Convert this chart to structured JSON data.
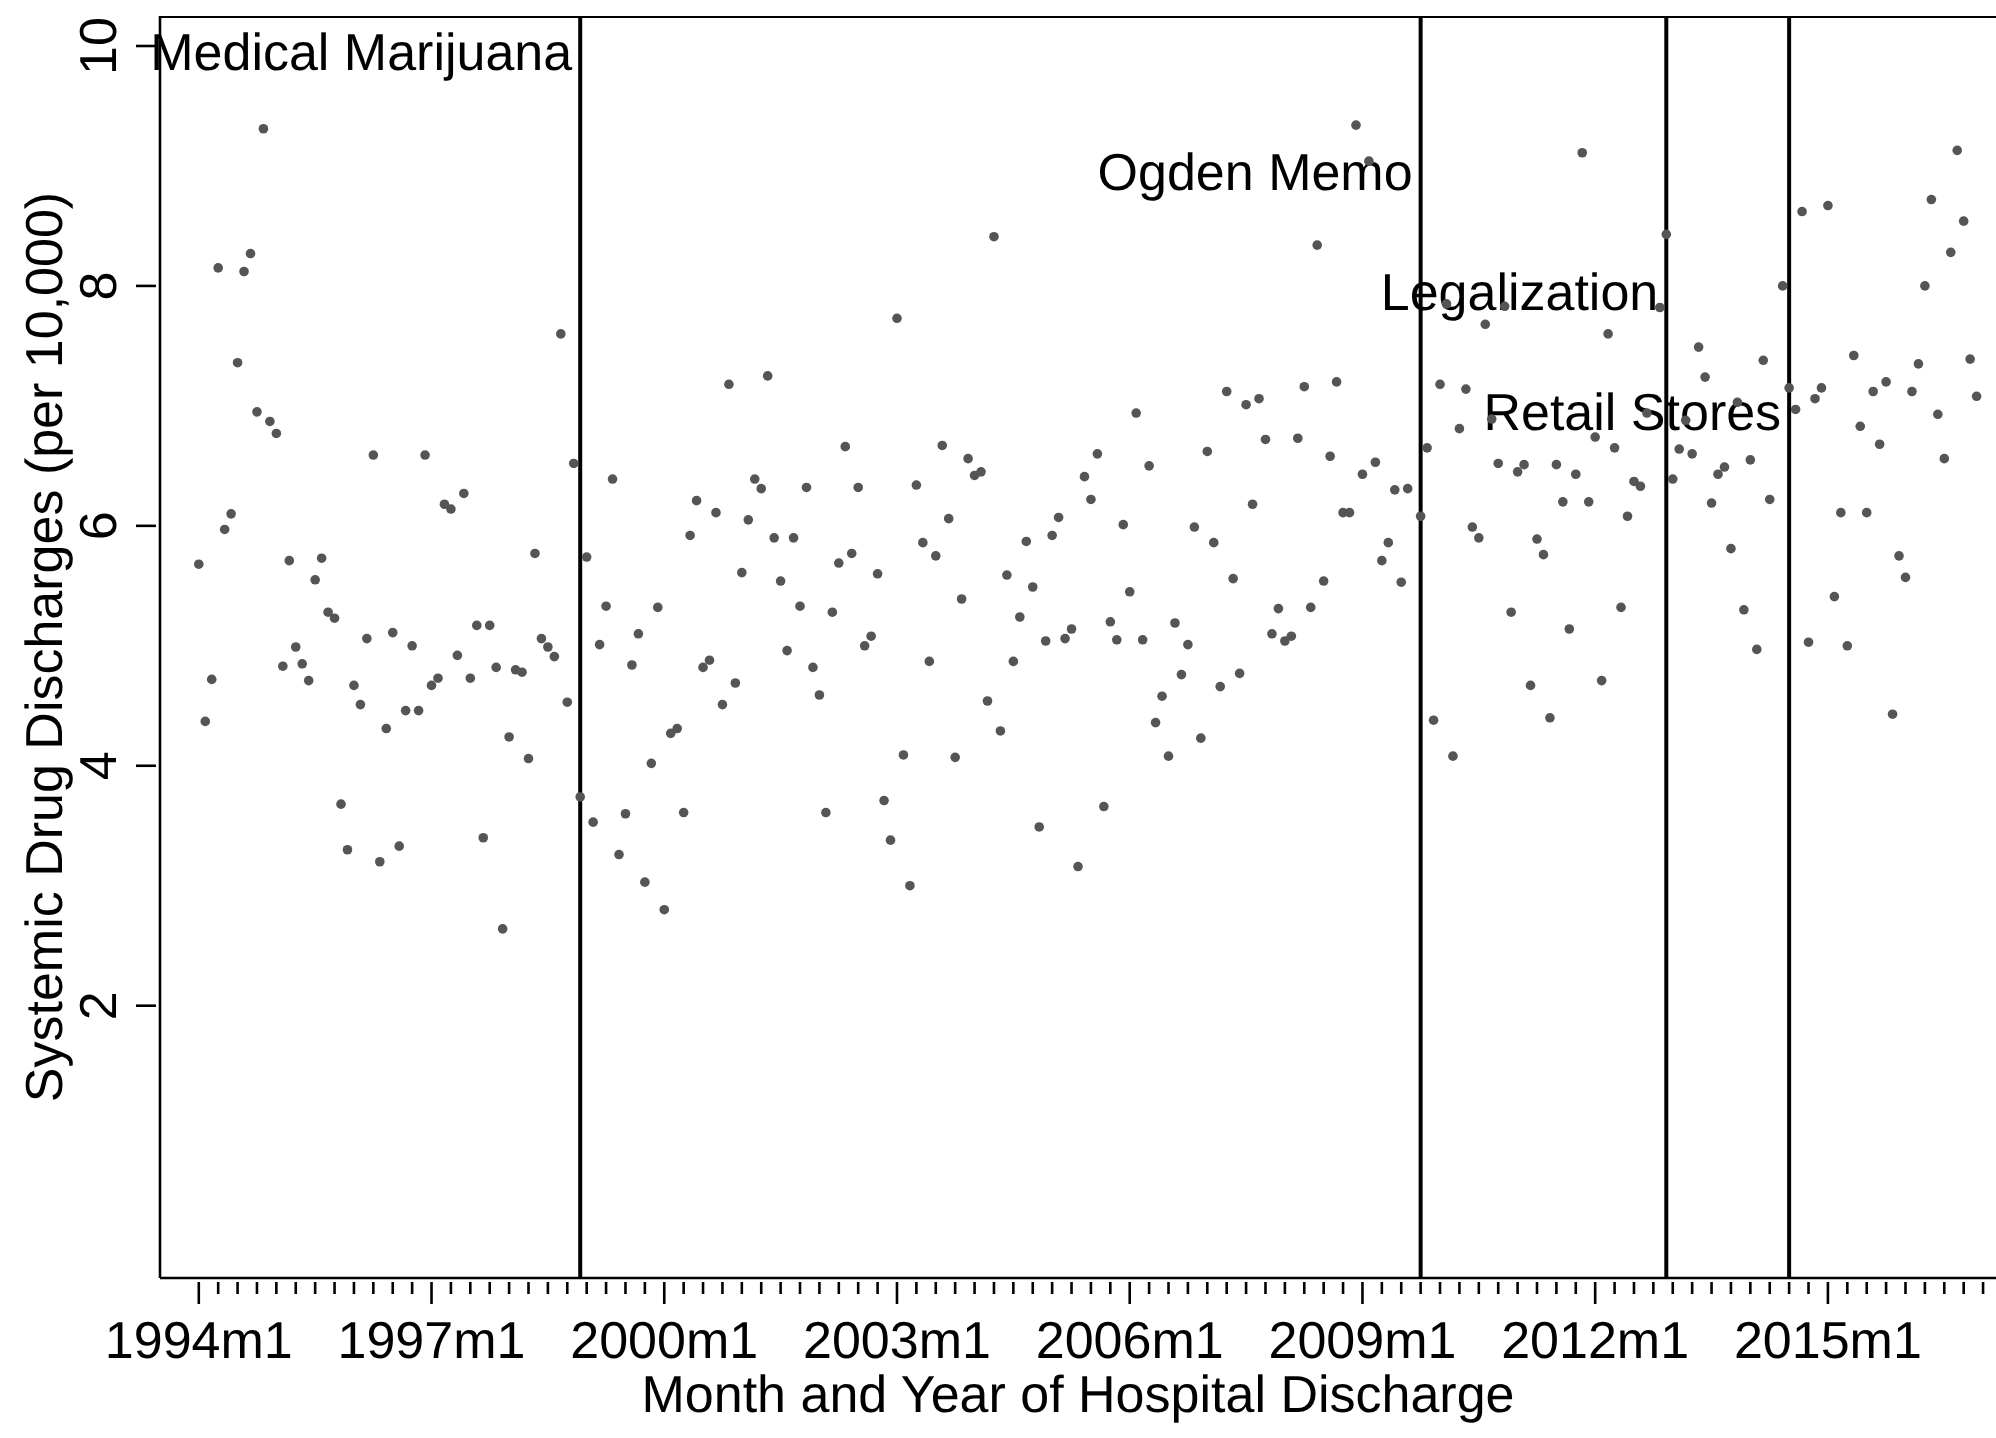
{
  "chart_data": {
    "type": "scatter",
    "xlabel": "Month and Year of Hospital Discharge",
    "ylabel": "Systemic Drug Discharges (per 10,000)",
    "marker": "circle",
    "color": "#555555",
    "xlim": [
      "1993-07",
      "2017-03"
    ],
    "ylim": [
      -0.27,
      10.25
    ],
    "yticks": [
      2,
      4,
      6,
      8,
      10
    ],
    "xticks": [
      {
        "value": "1994-01",
        "label": "1994m1"
      },
      {
        "value": "1994-04",
        "label": null
      },
      {
        "value": "1994-07",
        "label": null
      },
      {
        "value": "1994-10",
        "label": null
      },
      {
        "value": "1995-01",
        "label": null
      },
      {
        "value": "1995-04",
        "label": null
      },
      {
        "value": "1995-07",
        "label": null
      },
      {
        "value": "1995-10",
        "label": null
      },
      {
        "value": "1996-01",
        "label": null
      },
      {
        "value": "1996-04",
        "label": null
      },
      {
        "value": "1996-07",
        "label": null
      },
      {
        "value": "1996-10",
        "label": null
      },
      {
        "value": "1997-01",
        "label": "1997m1"
      },
      {
        "value": "1997-04",
        "label": null
      },
      {
        "value": "1997-07",
        "label": null
      },
      {
        "value": "1997-10",
        "label": null
      },
      {
        "value": "1998-01",
        "label": null
      },
      {
        "value": "1998-04",
        "label": null
      },
      {
        "value": "1998-07",
        "label": null
      },
      {
        "value": "1998-10",
        "label": null
      },
      {
        "value": "1999-01",
        "label": null
      },
      {
        "value": "1999-04",
        "label": null
      },
      {
        "value": "1999-07",
        "label": null
      },
      {
        "value": "1999-10",
        "label": null
      },
      {
        "value": "2000-01",
        "label": "2000m1"
      },
      {
        "value": "2000-04",
        "label": null
      },
      {
        "value": "2000-07",
        "label": null
      },
      {
        "value": "2000-10",
        "label": null
      },
      {
        "value": "2001-01",
        "label": null
      },
      {
        "value": "2001-04",
        "label": null
      },
      {
        "value": "2001-07",
        "label": null
      },
      {
        "value": "2001-10",
        "label": null
      },
      {
        "value": "2002-01",
        "label": null
      },
      {
        "value": "2002-04",
        "label": null
      },
      {
        "value": "2002-07",
        "label": null
      },
      {
        "value": "2002-10",
        "label": null
      },
      {
        "value": "2003-01",
        "label": "2003m1"
      },
      {
        "value": "2003-04",
        "label": null
      },
      {
        "value": "2003-07",
        "label": null
      },
      {
        "value": "2003-10",
        "label": null
      },
      {
        "value": "2004-01",
        "label": null
      },
      {
        "value": "2004-04",
        "label": null
      },
      {
        "value": "2004-07",
        "label": null
      },
      {
        "value": "2004-10",
        "label": null
      },
      {
        "value": "2005-01",
        "label": null
      },
      {
        "value": "2005-04",
        "label": null
      },
      {
        "value": "2005-07",
        "label": null
      },
      {
        "value": "2005-10",
        "label": null
      },
      {
        "value": "2006-01",
        "label": "2006m1"
      },
      {
        "value": "2006-04",
        "label": null
      },
      {
        "value": "2006-07",
        "label": null
      },
      {
        "value": "2006-10",
        "label": null
      },
      {
        "value": "2007-01",
        "label": null
      },
      {
        "value": "2007-04",
        "label": null
      },
      {
        "value": "2007-07",
        "label": null
      },
      {
        "value": "2007-10",
        "label": null
      },
      {
        "value": "2008-01",
        "label": null
      },
      {
        "value": "2008-04",
        "label": null
      },
      {
        "value": "2008-07",
        "label": null
      },
      {
        "value": "2008-10",
        "label": null
      },
      {
        "value": "2009-01",
        "label": "2009m1"
      },
      {
        "value": "2009-04",
        "label": null
      },
      {
        "value": "2009-07",
        "label": null
      },
      {
        "value": "2009-10",
        "label": null
      },
      {
        "value": "2010-01",
        "label": null
      },
      {
        "value": "2010-04",
        "label": null
      },
      {
        "value": "2010-07",
        "label": null
      },
      {
        "value": "2010-10",
        "label": null
      },
      {
        "value": "2011-01",
        "label": null
      },
      {
        "value": "2011-04",
        "label": null
      },
      {
        "value": "2011-07",
        "label": null
      },
      {
        "value": "2011-10",
        "label": null
      },
      {
        "value": "2012-01",
        "label": "2012m1"
      },
      {
        "value": "2012-04",
        "label": null
      },
      {
        "value": "2012-07",
        "label": null
      },
      {
        "value": "2012-10",
        "label": null
      },
      {
        "value": "2013-01",
        "label": null
      },
      {
        "value": "2013-04",
        "label": null
      },
      {
        "value": "2013-07",
        "label": null
      },
      {
        "value": "2013-10",
        "label": null
      },
      {
        "value": "2014-01",
        "label": null
      },
      {
        "value": "2014-04",
        "label": null
      },
      {
        "value": "2014-07",
        "label": null
      },
      {
        "value": "2014-10",
        "label": null
      },
      {
        "value": "2015-01",
        "label": "2015m1"
      },
      {
        "value": "2015-04",
        "label": null
      },
      {
        "value": "2015-07",
        "label": null
      },
      {
        "value": "2015-10",
        "label": null
      },
      {
        "value": "2016-01",
        "label": null
      },
      {
        "value": "2016-04",
        "label": null
      },
      {
        "value": "2016-07",
        "label": null
      },
      {
        "value": "2016-10",
        "label": null
      },
      {
        "value": "2017-01",
        "label": null
      }
    ],
    "ref_lines": [
      {
        "axis": "x",
        "value": "1998-12",
        "label": "Medical Marijuana",
        "color": "#000000"
      },
      {
        "axis": "x",
        "value": "2009-10",
        "label": "Ogden Memo",
        "color": "#000000"
      },
      {
        "axis": "x",
        "value": "2012-12",
        "label": "Legalization",
        "color": "#000000"
      },
      {
        "axis": "x",
        "value": "2014-07",
        "label": "Retail Stores",
        "color": "#000000"
      }
    ],
    "x": [
      "1994-01",
      "1994-02",
      "1994-03",
      "1994-04",
      "1994-05",
      "1994-06",
      "1994-07",
      "1994-08",
      "1994-09",
      "1994-10",
      "1994-11",
      "1994-12",
      "1995-01",
      "1995-02",
      "1995-03",
      "1995-04",
      "1995-05",
      "1995-06",
      "1995-07",
      "1995-08",
      "1995-09",
      "1995-10",
      "1995-11",
      "1995-12",
      "1996-01",
      "1996-02",
      "1996-03",
      "1996-04",
      "1996-05",
      "1996-06",
      "1996-07",
      "1996-08",
      "1996-09",
      "1996-10",
      "1996-11",
      "1996-12",
      "1997-01",
      "1997-02",
      "1997-03",
      "1997-04",
      "1997-05",
      "1997-06",
      "1997-07",
      "1997-08",
      "1997-09",
      "1997-10",
      "1997-11",
      "1997-12",
      "1998-01",
      "1998-02",
      "1998-03",
      "1998-04",
      "1998-05",
      "1998-06",
      "1998-07",
      "1998-08",
      "1998-09",
      "1998-10",
      "1998-11",
      "1998-12",
      "1999-01",
      "1999-02",
      "1999-03",
      "1999-04",
      "1999-05",
      "1999-06",
      "1999-07",
      "1999-08",
      "1999-09",
      "1999-10",
      "1999-11",
      "1999-12",
      "2000-01",
      "2000-02",
      "2000-03",
      "2000-04",
      "2000-05",
      "2000-06",
      "2000-07",
      "2000-08",
      "2000-09",
      "2000-10",
      "2000-11",
      "2000-12",
      "2001-01",
      "2001-02",
      "2001-03",
      "2001-04",
      "2001-05",
      "2001-06",
      "2001-07",
      "2001-08",
      "2001-09",
      "2001-10",
      "2001-11",
      "2001-12",
      "2002-01",
      "2002-02",
      "2002-03",
      "2002-04",
      "2002-05",
      "2002-06",
      "2002-07",
      "2002-08",
      "2002-09",
      "2002-10",
      "2002-11",
      "2002-12",
      "2003-01",
      "2003-02",
      "2003-03",
      "2003-04",
      "2003-05",
      "2003-06",
      "2003-07",
      "2003-08",
      "2003-09",
      "2003-10",
      "2003-11",
      "2003-12",
      "2004-01",
      "2004-02",
      "2004-03",
      "2004-04",
      "2004-05",
      "2004-06",
      "2004-07",
      "2004-08",
      "2004-09",
      "2004-10",
      "2004-11",
      "2004-12",
      "2005-01",
      "2005-02",
      "2005-03",
      "2005-04",
      "2005-05",
      "2005-06",
      "2005-07",
      "2005-08",
      "2005-09",
      "2005-10",
      "2005-11",
      "2005-12",
      "2006-01",
      "2006-02",
      "2006-03",
      "2006-04",
      "2006-05",
      "2006-06",
      "2006-07",
      "2006-08",
      "2006-09",
      "2006-10",
      "2006-11",
      "2006-12",
      "2007-01",
      "2007-02",
      "2007-03",
      "2007-04",
      "2007-05",
      "2007-06",
      "2007-07",
      "2007-08",
      "2007-09",
      "2007-10",
      "2007-11",
      "2007-12",
      "2008-01",
      "2008-02",
      "2008-03",
      "2008-04",
      "2008-05",
      "2008-06",
      "2008-07",
      "2008-08",
      "2008-09",
      "2008-10",
      "2008-11",
      "2008-12",
      "2009-01",
      "2009-02",
      "2009-03",
      "2009-04",
      "2009-05",
      "2009-06",
      "2009-07",
      "2009-08",
      "2009-09",
      "2009-10",
      "2009-11",
      "2009-12",
      "2010-01",
      "2010-02",
      "2010-03",
      "2010-04",
      "2010-05",
      "2010-06",
      "2010-07",
      "2010-08",
      "2010-09",
      "2010-10",
      "2010-11",
      "2010-12",
      "2011-01",
      "2011-02",
      "2011-03",
      "2011-04",
      "2011-05",
      "2011-06",
      "2011-07",
      "2011-08",
      "2011-09",
      "2011-10",
      "2011-11",
      "2011-12",
      "2012-01",
      "2012-02",
      "2012-03",
      "2012-04",
      "2012-05",
      "2012-06",
      "2012-07",
      "2012-08",
      "2012-09",
      "2012-10",
      "2012-11",
      "2012-12",
      "2013-01",
      "2013-02",
      "2013-03",
      "2013-04",
      "2013-05",
      "2013-06",
      "2013-07",
      "2013-08",
      "2013-09",
      "2013-10",
      "2013-11",
      "2013-12",
      "2014-01",
      "2014-02",
      "2014-03",
      "2014-04",
      "2014-05",
      "2014-06",
      "2014-07",
      "2014-08",
      "2014-09",
      "2014-10",
      "2014-11",
      "2014-12",
      "2015-01",
      "2015-02",
      "2015-03",
      "2015-04",
      "2015-05",
      "2015-06",
      "2015-07",
      "2015-08",
      "2015-09",
      "2015-10",
      "2015-11",
      "2015-12",
      "2016-01",
      "2016-02",
      "2016-03",
      "2016-04",
      "2016-05",
      "2016-06",
      "2016-07",
      "2016-08",
      "2016-09",
      "2016-10",
      "2016-11",
      "2016-12"
    ],
    "values": [
      5.68,
      4.37,
      4.72,
      8.15,
      5.97,
      6.1,
      7.36,
      8.12,
      8.27,
      6.95,
      9.31,
      6.87,
      6.77,
      4.83,
      5.71,
      4.99,
      4.85,
      4.71,
      5.55,
      5.73,
      5.28,
      5.23,
      3.68,
      3.3,
      4.67,
      4.51,
      5.06,
      6.59,
      3.2,
      4.31,
      5.11,
      3.33,
      4.46,
      5.0,
      4.46,
      6.59,
      4.67,
      4.73,
      6.18,
      6.14,
      4.92,
      6.27,
      4.73,
      5.17,
      3.4,
      5.17,
      4.82,
      2.64,
      4.24,
      4.8,
      4.78,
      4.06,
      5.77,
      5.06,
      4.99,
      4.91,
      7.6,
      4.53,
      6.52,
      3.74,
      5.74,
      3.53,
      5.01,
      5.33,
      6.39,
      3.26,
      3.6,
      4.84,
      5.1,
      3.03,
      4.02,
      5.32,
      2.8,
      4.27,
      4.31,
      3.61,
      5.92,
      6.21,
      4.82,
      4.88,
      6.11,
      4.51,
      7.18,
      4.69,
      5.61,
      6.05,
      6.39,
      6.31,
      7.25,
      5.9,
      5.54,
      4.96,
      5.9,
      5.33,
      6.32,
      4.82,
      4.59,
      3.61,
      5.28,
      5.69,
      6.66,
      5.77,
      6.32,
      5.0,
      5.08,
      5.6,
      3.71,
      3.38,
      7.73,
      4.09,
      3.0,
      6.34,
      5.86,
      4.87,
      5.75,
      6.67,
      6.06,
      4.07,
      5.39,
      6.56,
      6.42,
      6.45,
      4.54,
      8.41,
      4.29,
      5.59,
      4.87,
      5.24,
      5.87,
      5.49,
      3.49,
      5.04,
      5.92,
      6.07,
      5.06,
      5.14,
      3.16,
      6.41,
      6.22,
      6.6,
      3.66,
      5.2,
      5.05,
      6.01,
      5.45,
      6.94,
      5.05,
      6.5,
      4.36,
      4.58,
      4.08,
      5.19,
      4.76,
      5.01,
      5.99,
      4.23,
      6.62,
      5.86,
      4.66,
      7.12,
      5.56,
      4.77,
      7.01,
      6.18,
      7.06,
      6.72,
      5.1,
      5.31,
      5.04,
      5.08,
      6.73,
      7.16,
      5.32,
      8.34,
      5.54,
      6.58,
      7.2,
      6.11,
      6.11,
      9.34,
      6.43,
      9.04,
      6.53,
      5.71,
      5.86,
      6.3,
      5.53,
      6.31,
      null,
      6.08,
      6.65,
      4.38,
      7.18,
      7.85,
      4.08,
      6.81,
      7.14,
      5.99,
      5.9,
      7.68,
      6.89,
      6.52,
      7.83,
      5.28,
      6.45,
      6.51,
      4.67,
      5.89,
      5.76,
      4.4,
      6.51,
      6.2,
      5.14,
      6.43,
      9.11,
      6.2,
      6.74,
      4.71,
      7.6,
      6.65,
      5.32,
      6.08,
      6.37,
      6.33,
      6.94,
      null,
      7.82,
      8.43,
      6.39,
      6.64,
      6.88,
      6.6,
      7.49,
      7.24,
      6.19,
      6.43,
      6.49,
      5.81,
      7.03,
      5.3,
      6.55,
      4.97,
      7.38,
      6.22,
      null,
      8.0,
      7.15,
      6.97,
      8.62,
      5.03,
      7.06,
      7.15,
      8.67,
      5.41,
      6.11,
      5.0,
      7.42,
      6.83,
      6.11,
      7.12,
      6.68,
      7.2,
      4.43,
      5.75,
      5.57,
      7.12,
      7.35,
      8.0,
      8.72,
      6.93,
      6.56,
      8.28,
      9.13,
      8.54,
      7.39,
      7.08
    ]
  }
}
